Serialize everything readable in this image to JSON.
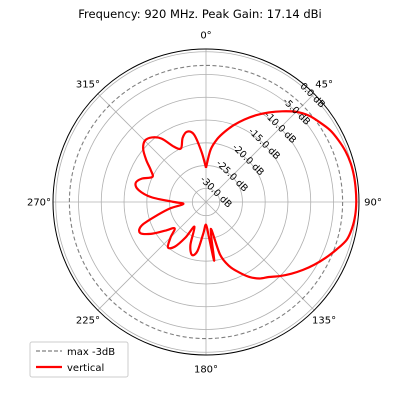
{
  "chart_data": {
    "type": "polar-line",
    "title": "Frequency: 920 MHz. Peak Gain: 17.14 dBi",
    "theta_direction": "clockwise",
    "theta_zero": "north",
    "theta_ticks": [
      0,
      45,
      90,
      135,
      180,
      225,
      270,
      315
    ],
    "theta_tick_labels": [
      "0°",
      "45°",
      "90°",
      "135°",
      "180°",
      "225°",
      "270°",
      "315°"
    ],
    "r_range": [
      -33,
      0.6
    ],
    "r_ticks": [
      -30,
      -25,
      -20,
      -15,
      -10,
      -5,
      0
    ],
    "r_tick_labels": [
      "-30.0 dB",
      "-25.0 dB",
      "-20.0 dB",
      "-15.0 dB",
      "-10.0 dB",
      "-5.0 dB",
      "0.0 dB"
    ],
    "r_label_angle_deg": 45,
    "grid": true,
    "legend_position": "lower-left",
    "reference": {
      "name": "max -3dB",
      "value_db": -3,
      "color": "#808080",
      "style": "dashed"
    },
    "series": [
      {
        "name": "vertical",
        "color": "#ff0000",
        "theta_deg": [
          0,
          5,
          10,
          15,
          20,
          25,
          30,
          35,
          40,
          45,
          50,
          55,
          60,
          65,
          70,
          75,
          80,
          85,
          90,
          95,
          100,
          105,
          110,
          115,
          120,
          125,
          130,
          135,
          140,
          145,
          150,
          155,
          160,
          165,
          170,
          172,
          175,
          180,
          185,
          190,
          195,
          200,
          205,
          210,
          215,
          220,
          225,
          230,
          235,
          240,
          245,
          250,
          255,
          260,
          265,
          270,
          275,
          280,
          285,
          290,
          295,
          300,
          305,
          310,
          315,
          320,
          325,
          330,
          335,
          340,
          345,
          350,
          355,
          360
        ],
        "r_db": [
          -25.5,
          -21.5,
          -19.0,
          -17.0,
          -15.0,
          -13.0,
          -11.0,
          -9.0,
          -7.0,
          -5.0,
          -3.5,
          -2.5,
          -1.5,
          -0.9,
          -0.4,
          -0.1,
          0.0,
          0.0,
          0.0,
          -0.1,
          -0.4,
          -1.0,
          -2.5,
          -4.0,
          -5.5,
          -7.0,
          -8.5,
          -10.0,
          -11.5,
          -12.5,
          -14.0,
          -16.0,
          -18.0,
          -21.0,
          -27.0,
          -20.0,
          -25.0,
          -28.0,
          -26.0,
          -22.0,
          -21.0,
          -23.0,
          -27.0,
          -24.0,
          -21.0,
          -20.0,
          -22.0,
          -24.0,
          -22.0,
          -19.0,
          -17.0,
          -18.0,
          -22.0,
          -25.0,
          -28.0,
          -26.0,
          -21.0,
          -18.0,
          -17.0,
          -18.0,
          -20.0,
          -19.0,
          -17.0,
          -15.0,
          -14.0,
          -14.5,
          -16.0,
          -19.0,
          -20.0,
          -18.0,
          -17.0,
          -18.0,
          -22.0,
          -25.5
        ]
      }
    ]
  }
}
